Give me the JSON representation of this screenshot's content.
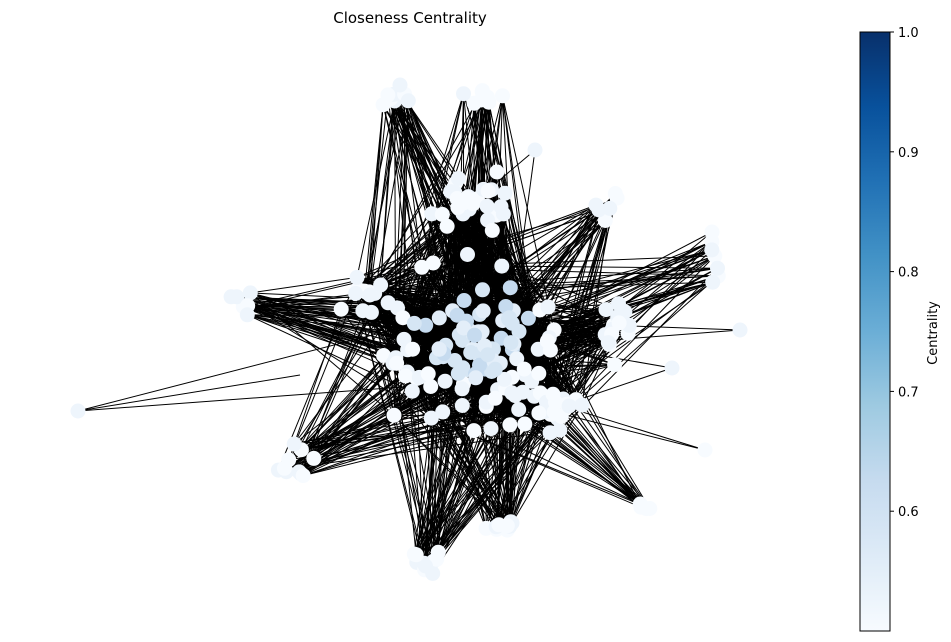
{
  "chart_data": {
    "type": "network",
    "title": "Closeness Centrality",
    "colorbar": {
      "label": "Centrality",
      "range": [
        0.5,
        1.0
      ],
      "ticks": [
        "0.6",
        "0.7",
        "0.8",
        "0.9",
        "1.0"
      ],
      "colormap": "Blues",
      "gradient": [
        "#f7fbff",
        "#deebf7",
        "#c6dbef",
        "#9ecae1",
        "#6baed6",
        "#4292c6",
        "#2171b5",
        "#08519c",
        "#08306b"
      ]
    },
    "edge_color": "#000000",
    "axes_visible": false
  }
}
